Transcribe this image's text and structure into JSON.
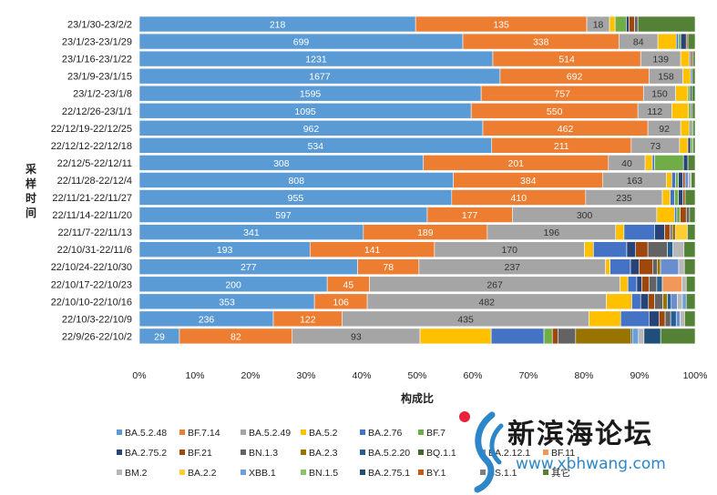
{
  "chart_data": {
    "type": "bar",
    "orientation": "horizontal-stacked-100",
    "ylabel": "采样时间",
    "xlabel": "构成比",
    "xticks": [
      "0%",
      "10%",
      "20%",
      "30%",
      "40%",
      "50%",
      "60%",
      "70%",
      "80%",
      "90%",
      "100%"
    ],
    "categories": [
      "23/1/30-23/2/2",
      "23/1/23-23/1/29",
      "23/1/16-23/1/22",
      "23/1/9-23/1/15",
      "23/1/2-23/1/8",
      "22/12/26-23/1/1",
      "22/12/19-22/12/25",
      "22/12/12-22/12/18",
      "22/12/5-22/12/11",
      "22/11/28-22/12/4",
      "22/11/21-22/11/27",
      "22/11/14-22/11/20",
      "22/11/7-22/11/13",
      "22/10/31-22/11/6",
      "22/10/24-22/10/30",
      "22/10/17-22/10/23",
      "22/10/10-22/10/16",
      "22/10/3-22/10/9",
      "22/9/26-22/10/2"
    ],
    "colors": {
      "BA.5.2.48": "#5b9bd5",
      "BF.7.14": "#ed7d31",
      "BA.5.2.49": "#a5a5a5",
      "BA.5.2": "#ffc000",
      "BA.2.76": "#4472c4",
      "BF.7": "#70ad47",
      "BA.2.75.2": "#264478",
      "BF.21": "#9e480e",
      "BN.1.3": "#636363",
      "BA.2.3": "#997300",
      "BA.5.2.20": "#255e91",
      "BQ.1.1": "#43682b",
      "BA.2.12.1": "#698ed0",
      "BF.11": "#f1975a",
      "BM.2": "#b7b7b7",
      "BA.2.2": "#ffcd33",
      "XBB.1": "#6a9fd9",
      "BN.1.5": "#8bc168",
      "BA.2.75.1": "#1f4e79",
      "BY.1": "#c55a11",
      "BS.1.1": "#7f7f7f",
      "其它": "#538135"
    },
    "series_order": [
      "BA.5.2.48",
      "BF.7.14",
      "BA.5.2.49",
      "BA.5.2",
      "BA.2.76",
      "BF.7",
      "BA.2.75.2",
      "BF.21",
      "BN.1.3",
      "BA.2.3",
      "BA.5.2.20",
      "BQ.1.1",
      "BA.2.12.1",
      "BF.11",
      "BM.2",
      "BA.2.2",
      "XBB.1",
      "BN.1.5",
      "BA.2.75.1",
      "BY.1",
      "BS.1.1",
      "其它"
    ],
    "rows": [
      {
        "labels": [
          218,
          135,
          18
        ],
        "segments": [
          [
            "BA.5.2.48",
            49.7
          ],
          [
            "BF.7.14",
            30.8
          ],
          [
            "BA.5.2.49",
            4.1
          ],
          [
            "BA.5.2",
            1.0
          ],
          [
            "BF.7",
            2.0
          ],
          [
            "BA.2.75.2",
            0.5
          ],
          [
            "BF.21",
            1.0
          ],
          [
            "BN.1.3",
            0.6
          ],
          [
            "其它",
            10.3
          ]
        ]
      },
      {
        "labels": [
          699,
          338,
          84
        ],
        "segments": [
          [
            "BA.5.2.48",
            58.2
          ],
          [
            "BF.7.14",
            28.1
          ],
          [
            "BA.5.2.49",
            7.0
          ],
          [
            "BA.5.2",
            3.3
          ],
          [
            "BA.2.76",
            0.4
          ],
          [
            "BF.7",
            0.4
          ],
          [
            "BA.2.75.2",
            1.0
          ],
          [
            "BF.21",
            0.3
          ],
          [
            "其它",
            1.3
          ]
        ]
      },
      {
        "labels": [
          1231,
          514,
          139
        ],
        "segments": [
          [
            "BA.5.2.48",
            63.6
          ],
          [
            "BF.7.14",
            26.6
          ],
          [
            "BA.5.2.49",
            7.2
          ],
          [
            "BA.5.2",
            1.6
          ],
          [
            "BA.2.76",
            0.3
          ],
          [
            "BF.21",
            0.3
          ],
          [
            "其它",
            0.4
          ]
        ]
      },
      {
        "labels": [
          1677,
          692,
          158
        ],
        "segments": [
          [
            "BA.5.2.48",
            64.9
          ],
          [
            "BF.7.14",
            26.8
          ],
          [
            "BA.5.2.49",
            6.1
          ],
          [
            "BA.5.2",
            1.4
          ],
          [
            "BA.2.76",
            0.3
          ],
          [
            "其它",
            0.5
          ]
        ]
      },
      {
        "labels": [
          1595,
          757,
          150
        ],
        "segments": [
          [
            "BA.5.2.48",
            61.5
          ],
          [
            "BF.7.14",
            29.2
          ],
          [
            "BA.5.2.49",
            5.8
          ],
          [
            "BA.5.2",
            2.2
          ],
          [
            "BF.7",
            0.4
          ],
          [
            "BA.2.75.2",
            0.3
          ],
          [
            "其它",
            0.6
          ]
        ]
      },
      {
        "labels": [
          1095,
          550,
          112
        ],
        "segments": [
          [
            "BA.5.2.48",
            59.7
          ],
          [
            "BF.7.14",
            30.0
          ],
          [
            "BA.5.2.49",
            6.1
          ],
          [
            "BA.5.2",
            3.0
          ],
          [
            "BF.7",
            0.4
          ],
          [
            "BN.1.3",
            0.3
          ],
          [
            "其它",
            0.5
          ]
        ]
      },
      {
        "labels": [
          962,
          462,
          92
        ],
        "segments": [
          [
            "BA.5.2.48",
            61.8
          ],
          [
            "BF.7.14",
            29.7
          ],
          [
            "BA.5.2.49",
            5.9
          ],
          [
            "BA.5.2",
            1.6
          ],
          [
            "BA.2.76",
            0.3
          ],
          [
            "BF.7",
            0.3
          ],
          [
            "其它",
            0.4
          ]
        ]
      },
      {
        "labels": [
          534,
          211,
          73
        ],
        "segments": [
          [
            "BA.5.2.48",
            63.4
          ],
          [
            "BF.7.14",
            25.1
          ],
          [
            "BA.5.2.49",
            8.7
          ],
          [
            "BA.5.2",
            1.5
          ],
          [
            "BA.2.75.2",
            0.5
          ],
          [
            "BF.7",
            0.4
          ],
          [
            "其它",
            0.4
          ]
        ]
      },
      {
        "labels": [
          308,
          201,
          40
        ],
        "segments": [
          [
            "BA.5.2.48",
            51.1
          ],
          [
            "BF.7.14",
            33.3
          ],
          [
            "BA.5.2.49",
            6.6
          ],
          [
            "BA.5.2",
            1.3
          ],
          [
            "BA.2.76",
            0.4
          ],
          [
            "BF.7",
            5.2
          ],
          [
            "BA.2.75.2",
            0.8
          ],
          [
            "其它",
            1.3
          ]
        ]
      },
      {
        "labels": [
          808,
          384,
          163
        ],
        "segments": [
          [
            "BA.5.2.48",
            56.5
          ],
          [
            "BF.7.14",
            26.9
          ],
          [
            "BA.5.2.49",
            11.4
          ],
          [
            "BA.5.2",
            1.0
          ],
          [
            "BA.2.76",
            0.7
          ],
          [
            "BF.7",
            0.5
          ],
          [
            "BA.2.75.2",
            0.8
          ],
          [
            "BF.21",
            0.4
          ],
          [
            "BA.2.12.1",
            0.6
          ],
          [
            "BM.2",
            0.5
          ],
          [
            "其它",
            0.7
          ]
        ]
      },
      {
        "labels": [
          955,
          410,
          235
        ],
        "segments": [
          [
            "BA.5.2.48",
            56.2
          ],
          [
            "BF.7.14",
            24.1
          ],
          [
            "BA.5.2.49",
            13.8
          ],
          [
            "BA.5.2",
            1.4
          ],
          [
            "BA.2.76",
            0.8
          ],
          [
            "BF.7",
            0.7
          ],
          [
            "BA.2.75.2",
            0.8
          ],
          [
            "BF.21",
            0.4
          ],
          [
            "其它",
            1.8
          ]
        ]
      },
      {
        "labels": [
          597,
          177,
          300
        ],
        "segments": [
          [
            "BA.5.2.48",
            51.8
          ],
          [
            "BF.7.14",
            15.3
          ],
          [
            "BA.5.2.49",
            26.0
          ],
          [
            "BA.5.2",
            3.2
          ],
          [
            "BA.2.76",
            0.4
          ],
          [
            "BF.7",
            0.6
          ],
          [
            "BF.21",
            1.1
          ],
          [
            "BN.1.3",
            0.6
          ],
          [
            "其它",
            1.0
          ]
        ]
      },
      {
        "labels": [
          341,
          189,
          196
        ],
        "segments": [
          [
            "BA.5.2.48",
            40.3
          ],
          [
            "BF.7.14",
            22.3
          ],
          [
            "BA.5.2.49",
            23.1
          ],
          [
            "BA.5.2",
            1.5
          ],
          [
            "BA.2.76",
            5.5
          ],
          [
            "BA.2.75.2",
            1.8
          ],
          [
            "BF.21",
            1.0
          ],
          [
            "BN.1.3",
            0.4
          ],
          [
            "BA.2.3",
            0.6
          ],
          [
            "BA.2.2",
            2.1
          ],
          [
            "其它",
            1.4
          ]
        ]
      },
      {
        "labels": [
          193,
          141,
          170
        ],
        "segments": [
          [
            "BA.5.2.48",
            30.7
          ],
          [
            "BF.7.14",
            22.4
          ],
          [
            "BA.5.2.49",
            27.0
          ],
          [
            "BA.5.2",
            1.6
          ],
          [
            "BA.2.76",
            6.0
          ],
          [
            "BA.2.75.2",
            1.6
          ],
          [
            "BF.21",
            2.2
          ],
          [
            "BN.1.3",
            3.5
          ],
          [
            "BA.5.2.20",
            1.0
          ],
          [
            "BM.2",
            2.0
          ],
          [
            "其它",
            2.0
          ]
        ]
      },
      {
        "labels": [
          277,
          78,
          237
        ],
        "segments": [
          [
            "BA.5.2.48",
            38.5
          ],
          [
            "BF.7.14",
            10.8
          ],
          [
            "BA.5.2.49",
            32.9
          ],
          [
            "BA.5.2",
            0.8
          ],
          [
            "BA.2.76",
            3.6
          ],
          [
            "BA.2.75.2",
            1.5
          ],
          [
            "BF.21",
            2.4
          ],
          [
            "BN.1.3",
            0.8
          ],
          [
            "BA.2.3",
            0.6
          ],
          [
            "BA.2.12.1",
            3.2
          ],
          [
            "BM.2",
            1.0
          ],
          [
            "其它",
            1.9
          ]
        ]
      },
      {
        "labels": [
          200,
          45,
          267
        ],
        "segments": [
          [
            "BA.5.2.48",
            33.8
          ],
          [
            "BF.7.14",
            7.6
          ],
          [
            "BA.5.2.49",
            45.1
          ],
          [
            "BA.5.2",
            1.4
          ],
          [
            "BA.2.76",
            1.6
          ],
          [
            "BA.2.75.2",
            0.9
          ],
          [
            "BF.21",
            1.3
          ],
          [
            "BN.1.3",
            1.4
          ],
          [
            "BA.5.2.20",
            1.0
          ],
          [
            "BF.11",
            3.5
          ],
          [
            "BM.2",
            0.8
          ],
          [
            "其它",
            1.6
          ]
        ]
      },
      {
        "labels": [
          353,
          106,
          482
        ],
        "segments": [
          [
            "BA.5.2.48",
            31.5
          ],
          [
            "BF.7.14",
            9.5
          ],
          [
            "BA.5.2.49",
            43.0
          ],
          [
            "BA.5.2",
            4.6
          ],
          [
            "BA.2.76",
            1.6
          ],
          [
            "BA.2.75.2",
            1.4
          ],
          [
            "BF.21",
            1.1
          ],
          [
            "BN.1.3",
            1.5
          ],
          [
            "BA.2.3",
            0.8
          ],
          [
            "BA.5.2.20",
            0.7
          ],
          [
            "BA.2.12.1",
            1.1
          ],
          [
            "BM.2",
            0.9
          ],
          [
            "XBB.1",
            0.7
          ],
          [
            "其它",
            1.6
          ]
        ]
      },
      {
        "labels": [
          236,
          122,
          435
        ],
        "segments": [
          [
            "BA.5.2.48",
            24.1
          ],
          [
            "BF.7.14",
            12.4
          ],
          [
            "BA.5.2.49",
            44.4
          ],
          [
            "BA.5.2",
            5.7
          ],
          [
            "BA.2.76",
            5.1
          ],
          [
            "BA.2.75.2",
            1.8
          ],
          [
            "BF.21",
            1.1
          ],
          [
            "BN.1.3",
            1.0
          ],
          [
            "BA.5.2.20",
            1.0
          ],
          [
            "BA.2.12.1",
            0.7
          ],
          [
            "BM.2",
            0.8
          ],
          [
            "其它",
            1.9
          ]
        ]
      },
      {
        "labels": [
          29,
          82,
          93
        ],
        "segments": [
          [
            "BA.5.2.48",
            7.2
          ],
          [
            "BF.7.14",
            20.3
          ],
          [
            "BA.5.2.49",
            23.0
          ],
          [
            "BA.5.2",
            12.8
          ],
          [
            "BA.2.76",
            9.5
          ],
          [
            "BF.7",
            1.5
          ],
          [
            "BF.21",
            1.0
          ],
          [
            "BN.1.3",
            3.2
          ],
          [
            "BA.2.3",
            10.0
          ],
          [
            "BA.5.2.20",
            0.3
          ],
          [
            "XBB.1",
            1.0
          ],
          [
            "BM.2",
            1.0
          ],
          [
            "BA.2.75.1",
            3.0
          ],
          [
            "其它",
            6.2
          ]
        ]
      }
    ]
  },
  "legend": [
    [
      "BA.5.2.48",
      "BF.7.14",
      "BA.5.2.49",
      "BA.5.2",
      "BA.2.76",
      "BF.7"
    ],
    [
      "BA.2.75.2",
      "BF.21",
      "BN.1.3",
      "BA.2.3",
      "BA.5.2.20",
      "BQ.1.1",
      "BA.2.12.1",
      "BF.11"
    ],
    [
      "BM.2",
      "BA.2.2",
      "XBB.1",
      "BN.1.5",
      "BA.2.75.1",
      "BY.1",
      "BS.1.1",
      "其它"
    ]
  ],
  "watermark": {
    "title": "新滨海论坛",
    "url": "www.xbhwang.com"
  }
}
